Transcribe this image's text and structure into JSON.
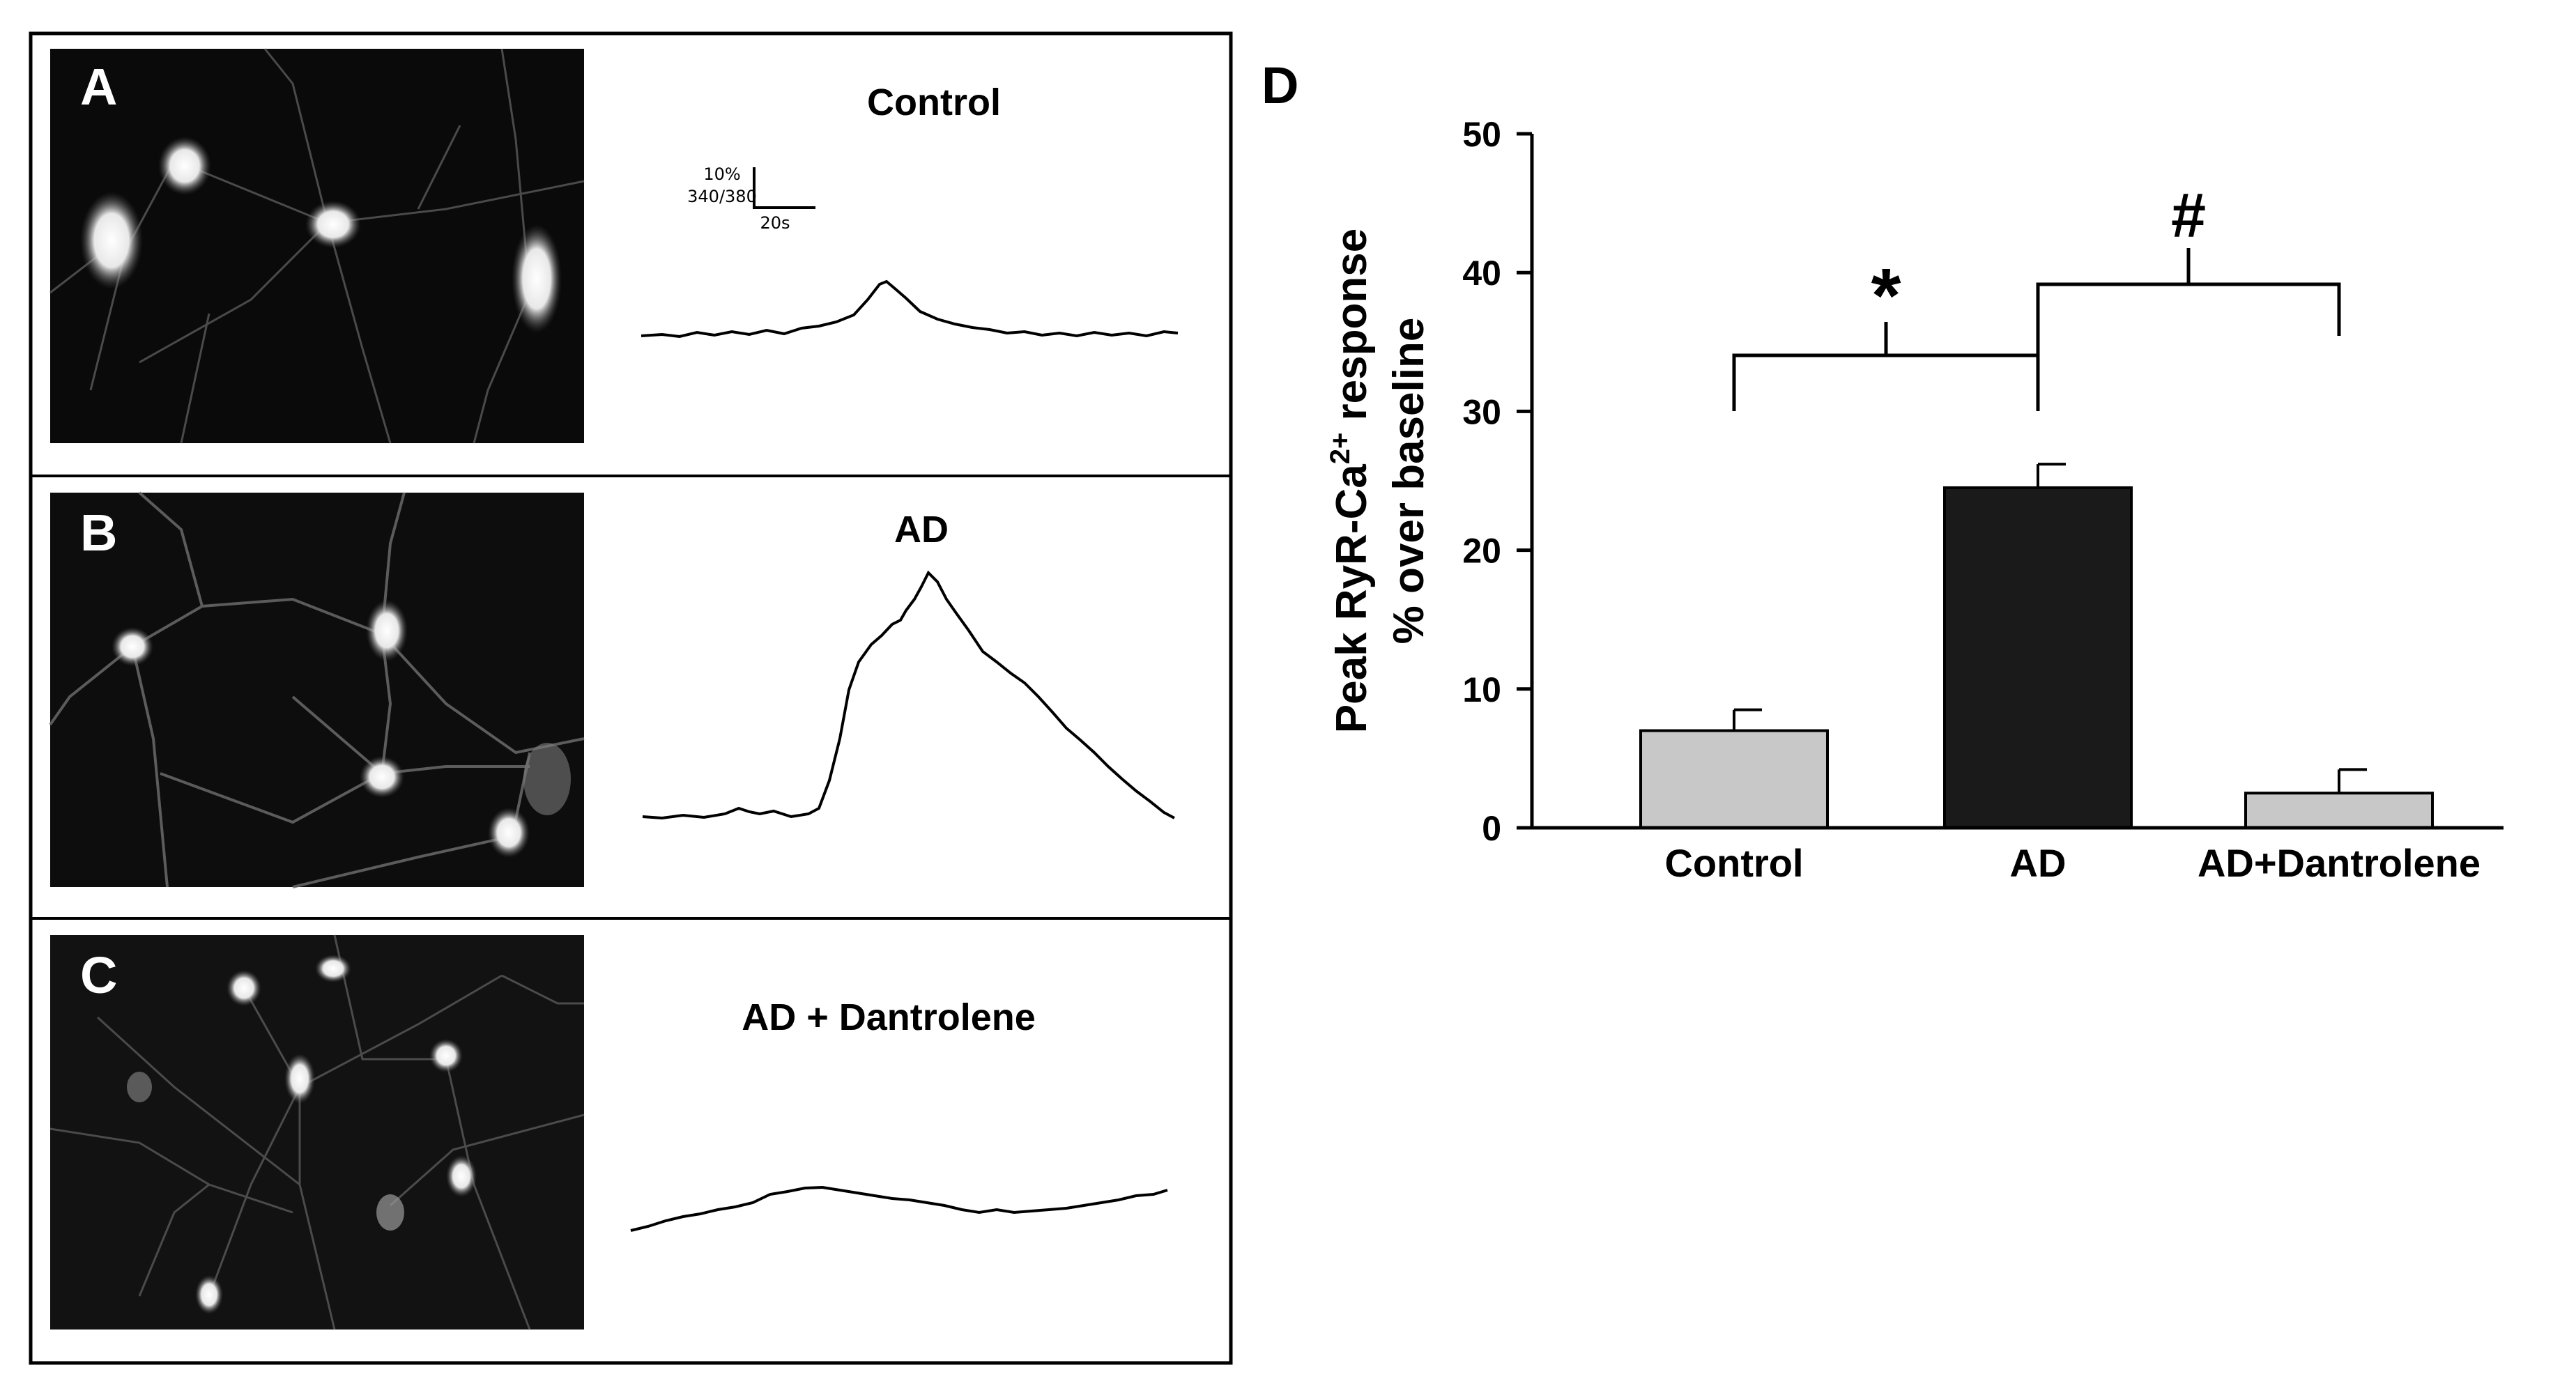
{
  "panels": [
    {
      "letter": "A",
      "title": "Control"
    },
    {
      "letter": "B",
      "title": "AD"
    },
    {
      "letter": "C",
      "title": "AD + Dantrolene"
    }
  ],
  "scale_bar": {
    "y_label_line1": "10%",
    "y_label_line2": "340/380",
    "x_label": "20s"
  },
  "chart_data": {
    "type": "bar",
    "panel_letter": "D",
    "title": "",
    "ylabel_line1_main": "Peak RyR-Ca",
    "ylabel_superscript": "2+",
    "ylabel_line1_suffix": " response",
    "ylabel_line2": "% over baseline",
    "xlabel": "",
    "ylim": [
      0,
      50
    ],
    "yticks": [
      "0",
      "10",
      "20",
      "30",
      "40",
      "50"
    ],
    "categories": [
      "Control",
      "AD",
      "AD+Dantrolene"
    ],
    "values": [
      7,
      24.5,
      2.5
    ],
    "errors": [
      1.5,
      1.7,
      1.7
    ],
    "bar_colors": [
      "#c8c8c8",
      "#1a1a1a",
      "#c8c8c8"
    ],
    "significance": [
      {
        "from": "Control",
        "to": "AD",
        "symbol": "*"
      },
      {
        "from": "AD",
        "to": "AD+Dantrolene",
        "symbol": "#"
      }
    ]
  }
}
